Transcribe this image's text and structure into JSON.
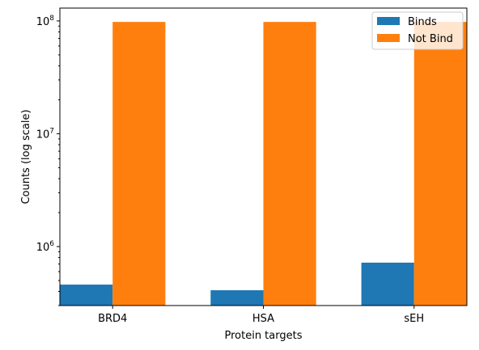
{
  "chart_data": {
    "type": "bar",
    "title": "",
    "xlabel": "Protein targets",
    "ylabel": "Counts (log scale)",
    "yscale": "log",
    "ylim": [
      300000,
      130000000
    ],
    "yticks": [
      {
        "value": 1000000,
        "base": "10",
        "exp": "6"
      },
      {
        "value": 10000000,
        "base": "10",
        "exp": "7"
      },
      {
        "value": 100000000,
        "base": "10",
        "exp": "8"
      }
    ],
    "categories": [
      "BRD4",
      "HSA",
      "sEH"
    ],
    "series": [
      {
        "name": "Binds",
        "color": "#1f77b4",
        "values": [
          460000,
          410000,
          720000
        ]
      },
      {
        "name": "Not Bind",
        "color": "#ff7f0e",
        "values": [
          98000000,
          98000000,
          98000000
        ]
      }
    ],
    "grid": false,
    "legend": "top-right"
  }
}
